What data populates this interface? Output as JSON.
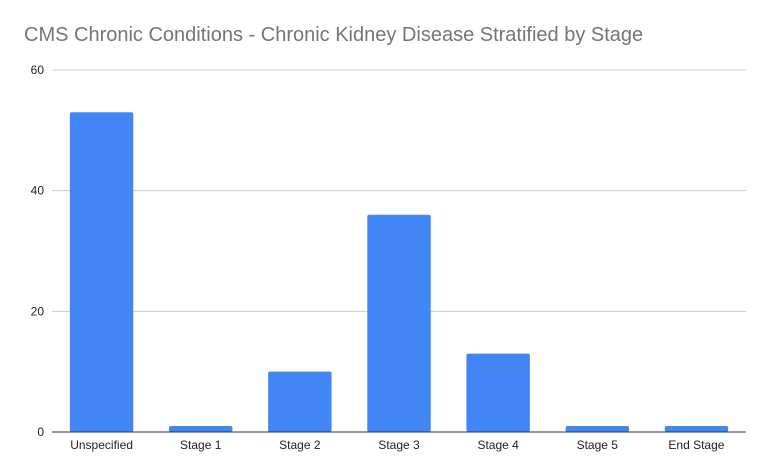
{
  "chart_data": {
    "type": "bar",
    "title": "CMS Chronic Conditions - Chronic Kidney Disease Stratified by Stage",
    "xlabel": "",
    "ylabel": "",
    "categories": [
      "Unspecified",
      "Stage 1",
      "Stage 2",
      "Stage 3",
      "Stage 4",
      "Stage 5",
      "End Stage"
    ],
    "values": [
      53,
      1,
      10,
      36,
      13,
      1,
      1
    ],
    "ylim": [
      0,
      60
    ],
    "yticks": [
      0,
      20,
      40,
      60
    ],
    "grid": true,
    "legend": "none",
    "colors": {
      "bar": "#4285f4",
      "grid": "#cccccc",
      "axis": "#333333",
      "title": "#757575"
    }
  }
}
